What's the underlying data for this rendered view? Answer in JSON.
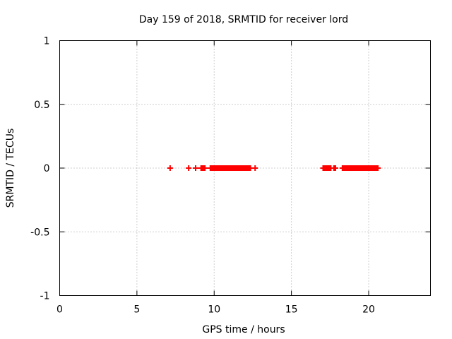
{
  "chart_data": {
    "type": "scatter",
    "title": "Day 159 of 2018, SRMTID for receiver lord",
    "xlabel": "GPS time / hours",
    "ylabel": "SRMTID / TECUs",
    "xlim": [
      0,
      24
    ],
    "ylim": [
      -1,
      1
    ],
    "grid": true,
    "marker": "+",
    "xticks": [
      {
        "value": 0,
        "label": "0"
      },
      {
        "value": 5,
        "label": "5"
      },
      {
        "value": 10,
        "label": "10"
      },
      {
        "value": 15,
        "label": "15"
      },
      {
        "value": 20,
        "label": "20"
      }
    ],
    "yticks": [
      {
        "value": -1,
        "label": "-1"
      },
      {
        "value": -0.5,
        "label": "-0.5"
      },
      {
        "value": 0,
        "label": "0"
      },
      {
        "value": 0.5,
        "label": "0.5"
      },
      {
        "value": 1,
        "label": "1"
      }
    ],
    "series": [
      {
        "name": "SRMTID",
        "color": "#ff0000",
        "x": [
          7.15,
          8.35,
          8.8,
          9.15,
          9.2,
          9.25,
          9.3,
          9.35,
          9.4,
          9.75,
          9.8,
          9.85,
          9.9,
          9.95,
          10.0,
          10.05,
          10.1,
          10.15,
          10.2,
          10.25,
          10.3,
          10.35,
          10.4,
          10.45,
          10.5,
          10.55,
          10.6,
          10.65,
          10.7,
          10.75,
          10.8,
          10.85,
          10.9,
          10.95,
          11.0,
          11.05,
          11.1,
          11.15,
          11.2,
          11.25,
          11.3,
          11.35,
          11.4,
          11.45,
          11.5,
          11.55,
          11.6,
          11.65,
          11.7,
          11.75,
          11.8,
          11.85,
          11.9,
          11.95,
          12.0,
          12.05,
          12.1,
          12.15,
          12.2,
          12.25,
          12.3,
          12.35,
          12.65,
          17.05,
          17.1,
          17.15,
          17.2,
          17.25,
          17.3,
          17.35,
          17.4,
          17.45,
          17.5,
          17.55,
          17.75,
          17.8,
          17.85,
          18.3,
          18.35,
          18.4,
          18.45,
          18.5,
          18.55,
          18.6,
          18.65,
          18.7,
          18.75,
          18.8,
          18.85,
          18.9,
          18.95,
          19.0,
          19.05,
          19.1,
          19.15,
          19.2,
          19.25,
          19.3,
          19.35,
          19.4,
          19.45,
          19.5,
          19.55,
          19.6,
          19.65,
          19.7,
          19.75,
          19.8,
          19.85,
          19.9,
          19.95,
          20.0,
          20.05,
          20.1,
          20.15,
          20.2,
          20.25,
          20.3,
          20.35,
          20.4,
          20.45,
          20.5,
          20.55,
          20.6
        ],
        "y": [
          0,
          0,
          0,
          0,
          0,
          0,
          0,
          0,
          0,
          0,
          0,
          0,
          0,
          0,
          0,
          0,
          0,
          0,
          0,
          0,
          0,
          0,
          0,
          0,
          0,
          0,
          0,
          0,
          0,
          0,
          0,
          0,
          0,
          0,
          0,
          0,
          0,
          0,
          0,
          0,
          0,
          0,
          0,
          0,
          0,
          0,
          0,
          0,
          0,
          0,
          0,
          0,
          0,
          0,
          0,
          0,
          0,
          0,
          0,
          0,
          0,
          0,
          0,
          0,
          0,
          0,
          0,
          0,
          0,
          0,
          0,
          0,
          0,
          0,
          0,
          0,
          0,
          0,
          0,
          0,
          0,
          0,
          0,
          0,
          0,
          0,
          0,
          0,
          0,
          0,
          0,
          0,
          0,
          0,
          0,
          0,
          0,
          0,
          0,
          0,
          0,
          0,
          0,
          0,
          0,
          0,
          0,
          0,
          0,
          0,
          0,
          0,
          0,
          0,
          0,
          0,
          0,
          0,
          0,
          0,
          0,
          0,
          0,
          0
        ]
      }
    ]
  }
}
